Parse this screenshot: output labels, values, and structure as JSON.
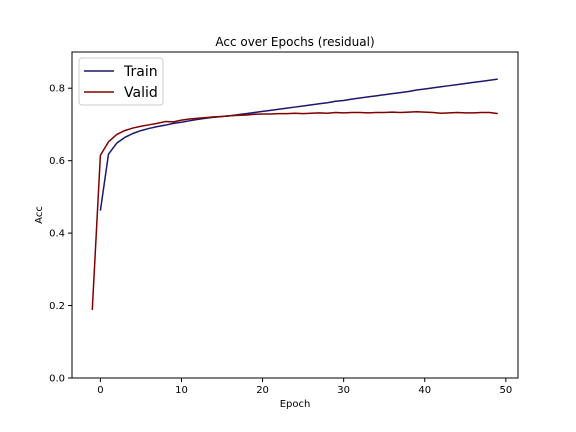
{
  "chart_data": {
    "type": "line",
    "title": "Acc over Epochs (residual)",
    "xlabel": "Epoch",
    "ylabel": "Acc",
    "xlim": [
      -3.5,
      51.5
    ],
    "ylim": [
      0.0,
      0.9
    ],
    "xticks": [
      0,
      10,
      20,
      30,
      40,
      50
    ],
    "yticks": [
      0.0,
      0.2,
      0.4,
      0.6,
      0.8
    ],
    "xtick_labels": [
      "0",
      "10",
      "20",
      "30",
      "40",
      "50"
    ],
    "ytick_labels": [
      "0.0",
      "0.2",
      "0.4",
      "0.6",
      "0.8"
    ],
    "grid": false,
    "legend_position": "upper-left",
    "series": [
      {
        "name": "Train",
        "color": "#191970",
        "x": [
          0,
          1,
          2,
          3,
          4,
          5,
          6,
          7,
          8,
          9,
          10,
          11,
          12,
          13,
          14,
          15,
          16,
          17,
          18,
          19,
          20,
          21,
          22,
          23,
          24,
          25,
          26,
          27,
          28,
          29,
          30,
          31,
          32,
          33,
          34,
          35,
          36,
          37,
          38,
          39,
          40,
          41,
          42,
          43,
          44,
          45,
          46,
          47,
          48,
          49
        ],
        "values": [
          0.462,
          0.618,
          0.648,
          0.664,
          0.675,
          0.683,
          0.689,
          0.694,
          0.698,
          0.703,
          0.706,
          0.71,
          0.714,
          0.717,
          0.72,
          0.722,
          0.724,
          0.727,
          0.73,
          0.733,
          0.736,
          0.739,
          0.742,
          0.745,
          0.748,
          0.751,
          0.754,
          0.757,
          0.76,
          0.764,
          0.766,
          0.77,
          0.773,
          0.776,
          0.779,
          0.782,
          0.785,
          0.788,
          0.791,
          0.795,
          0.798,
          0.801,
          0.804,
          0.807,
          0.81,
          0.813,
          0.816,
          0.819,
          0.822,
          0.825
        ]
      },
      {
        "name": "Valid",
        "color": "#800000",
        "x": [
          -1,
          0,
          1,
          2,
          3,
          4,
          5,
          6,
          7,
          8,
          9,
          10,
          11,
          12,
          13,
          14,
          15,
          16,
          17,
          18,
          19,
          20,
          21,
          22,
          23,
          24,
          25,
          26,
          27,
          28,
          29,
          30,
          31,
          32,
          33,
          34,
          35,
          36,
          37,
          38,
          39,
          40,
          41,
          42,
          43,
          44,
          45,
          46,
          47,
          48,
          49
        ],
        "values": [
          0.188,
          0.615,
          0.652,
          0.672,
          0.683,
          0.69,
          0.695,
          0.699,
          0.703,
          0.708,
          0.707,
          0.712,
          0.715,
          0.717,
          0.719,
          0.721,
          0.722,
          0.724,
          0.725,
          0.726,
          0.728,
          0.729,
          0.729,
          0.73,
          0.73,
          0.731,
          0.73,
          0.731,
          0.732,
          0.731,
          0.733,
          0.732,
          0.733,
          0.733,
          0.732,
          0.733,
          0.733,
          0.734,
          0.733,
          0.734,
          0.735,
          0.734,
          0.733,
          0.731,
          0.732,
          0.733,
          0.732,
          0.732,
          0.733,
          0.733,
          0.73
        ]
      }
    ]
  }
}
